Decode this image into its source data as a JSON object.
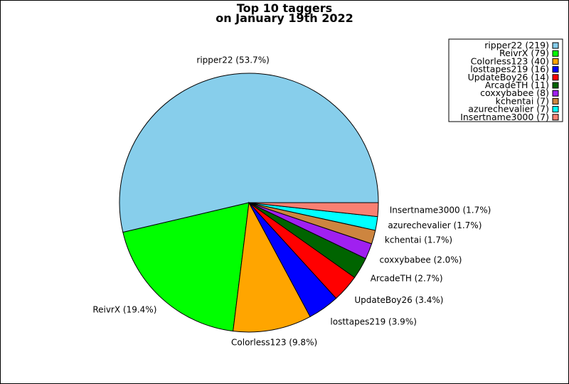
{
  "chart_data": {
    "type": "pie",
    "title_line1": "Top 10 taggers",
    "title_line2": "on January 19th 2022",
    "slices": [
      {
        "name": "ripper22",
        "value": 219,
        "pct_label": "ripper22 (53.7%)",
        "legend_label": "ripper22 (219)",
        "color": "#87CEEB"
      },
      {
        "name": "ReivrX",
        "value": 79,
        "pct_label": "ReivrX (19.4%)",
        "legend_label": "ReivrX (79)",
        "color": "#00FF00"
      },
      {
        "name": "Colorless123",
        "value": 40,
        "pct_label": "Colorless123 (9.8%)",
        "legend_label": "Colorless123 (40)",
        "color": "#FFA500"
      },
      {
        "name": "losttapes219",
        "value": 16,
        "pct_label": "losttapes219 (3.9%)",
        "legend_label": "losttapes219 (16)",
        "color": "#0000FF"
      },
      {
        "name": "UpdateBoy26",
        "value": 14,
        "pct_label": "UpdateBoy26 (3.4%)",
        "legend_label": "UpdateBoy26 (14)",
        "color": "#FF0000"
      },
      {
        "name": "ArcadeTH",
        "value": 11,
        "pct_label": "ArcadeTH (2.7%)",
        "legend_label": "ArcadeTH (11)",
        "color": "#006400"
      },
      {
        "name": "coxxybabee",
        "value": 8,
        "pct_label": "coxxybabee (2.0%)",
        "legend_label": "coxxybabee (8)",
        "color": "#A020F0"
      },
      {
        "name": "kchentai",
        "value": 7,
        "pct_label": "kchentai (1.7%)",
        "legend_label": "kchentai (7)",
        "color": "#CD853F"
      },
      {
        "name": "azurechevalier",
        "value": 7,
        "pct_label": "azurechevalier (1.7%)",
        "legend_label": "azurechevalier (7)",
        "color": "#00FFFF"
      },
      {
        "name": "Insertname3000",
        "value": 7,
        "pct_label": "Insertname3000 (1.7%)",
        "legend_label": "Insertname3000 (7)",
        "color": "#FA8072"
      }
    ],
    "legend_position": "top-right"
  }
}
